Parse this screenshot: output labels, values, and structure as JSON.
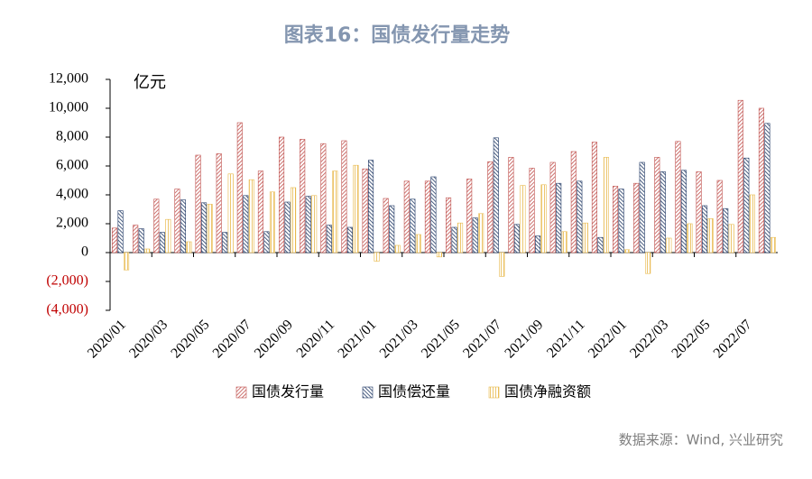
{
  "chart_data": {
    "type": "bar",
    "title": "图表16：国债发行量走势",
    "unit_label": "亿元",
    "source": "数据来源：Wind, 兴业研究",
    "categories": [
      "2020/01",
      null,
      "2020/03",
      null,
      "2020/05",
      null,
      "2020/07",
      null,
      "2020/09",
      null,
      "2020/11",
      null,
      "2021/01",
      null,
      "2021/03",
      null,
      "2021/05",
      null,
      "2021/07",
      null,
      "2021/09",
      null,
      "2021/11",
      null,
      "2022/01",
      null,
      "2022/03",
      null,
      "2022/05",
      null,
      "2022/07",
      null
    ],
    "series": [
      {
        "name": "国债发行量",
        "color": "#c0504d",
        "values": [
          1700,
          1900,
          3700,
          4400,
          6750,
          6850,
          9000,
          5650,
          8000,
          7850,
          7550,
          7750,
          5800,
          3750,
          4950,
          4950,
          3800,
          5100,
          6300,
          6600,
          5850,
          6250,
          7000,
          7650,
          4600,
          4800,
          6600,
          7700,
          5600,
          5000,
          10550,
          10000
        ]
      },
      {
        "name": "国债偿还量",
        "color": "#1f3864",
        "values": [
          2900,
          1650,
          1400,
          3650,
          3450,
          1400,
          3950,
          1450,
          3500,
          3900,
          1900,
          1750,
          6400,
          3250,
          3700,
          5250,
          1750,
          2400,
          7950,
          1950,
          1150,
          4800,
          4950,
          1050,
          4400,
          6250,
          5600,
          5700,
          3250,
          3050,
          6550,
          8950
        ]
      },
      {
        "name": "国债净融资额",
        "color": "#e8b84a",
        "values": [
          -1200,
          250,
          2300,
          750,
          3350,
          5450,
          5050,
          4200,
          4500,
          3950,
          5650,
          6050,
          -600,
          500,
          1250,
          -300,
          2050,
          2700,
          -1650,
          4650,
          4700,
          1450,
          2050,
          6600,
          200,
          -1450,
          1000,
          2000,
          2350,
          1950,
          4000,
          1050
        ]
      }
    ],
    "ylim": [
      -4000,
      12000
    ],
    "yticks": [
      {
        "value": -4000,
        "label": "(4,000)"
      },
      {
        "value": -2000,
        "label": "(2,000)"
      },
      0,
      {
        "value": 2000,
        "label": "2,000"
      },
      {
        "value": 4000,
        "label": "4,000"
      },
      {
        "value": 6000,
        "label": "6,000"
      },
      {
        "value": 8000,
        "label": "8,000"
      },
      {
        "value": 10000,
        "label": "10,000"
      },
      {
        "value": 12000,
        "label": "12,000"
      }
    ],
    "negative_tick_color": "#c00000",
    "legend": "bottom"
  }
}
